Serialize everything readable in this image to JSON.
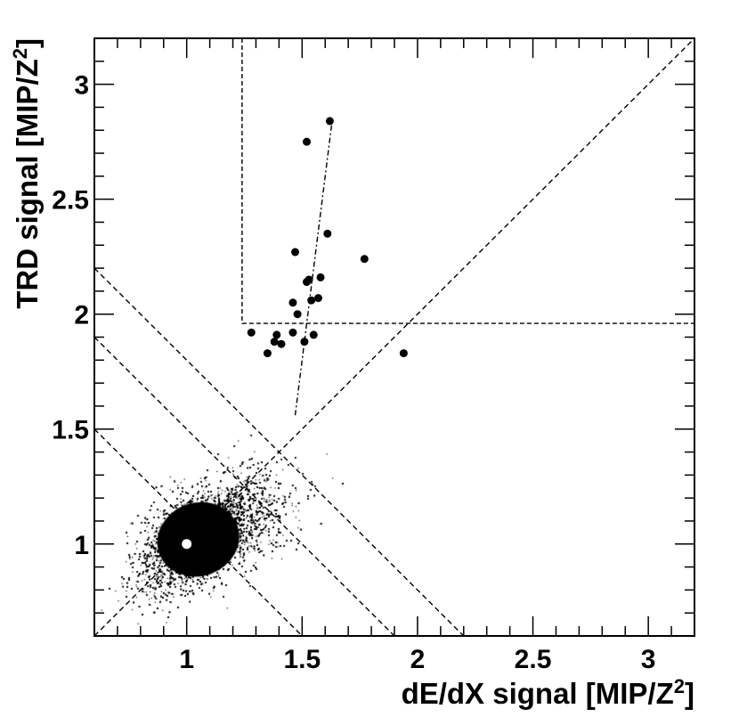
{
  "chart_data": {
    "type": "scatter",
    "title": "",
    "xlabel": {
      "main": "dE/dX signal [MIP/Z",
      "sup": "2",
      "close": "]"
    },
    "ylabel": {
      "main": "TRD signal [MIP/Z",
      "sup": "2",
      "close": "]"
    },
    "xlim": [
      0.6,
      3.2
    ],
    "ylim": [
      0.6,
      3.2
    ],
    "x_ticks": [
      1,
      1.5,
      2,
      2.5,
      3
    ],
    "y_ticks": [
      1,
      1.5,
      2,
      2.5,
      3
    ],
    "x_tick_labels": [
      "1",
      "1.5",
      "2",
      "2.5",
      "3"
    ],
    "y_tick_labels": [
      "1",
      "1.5",
      "2",
      "2.5",
      "3"
    ],
    "grid": false,
    "colors": {
      "points": "#000000",
      "center_marker": "#ffffff",
      "background": "#ffffff"
    },
    "center_marker": {
      "x": 1.0,
      "y": 1.0
    },
    "dense_distribution": {
      "description_free": true,
      "core_center": [
        1.05,
        1.02
      ],
      "core_radius": [
        0.18,
        0.16
      ],
      "x_range": [
        0.6,
        2.1
      ],
      "y_range": [
        0.6,
        1.7
      ]
    },
    "series": [
      {
        "marker": "circle",
        "points": [
          [
            1.28,
            1.92
          ],
          [
            1.35,
            1.83
          ],
          [
            1.39,
            1.91
          ],
          [
            1.38,
            1.88
          ],
          [
            1.41,
            1.87
          ],
          [
            1.46,
            1.92
          ],
          [
            1.46,
            2.05
          ],
          [
            1.47,
            2.27
          ],
          [
            1.48,
            2.0
          ],
          [
            1.51,
            1.88
          ],
          [
            1.52,
            2.14
          ],
          [
            1.52,
            2.75
          ],
          [
            1.53,
            2.15
          ],
          [
            1.54,
            2.06
          ],
          [
            1.55,
            1.91
          ],
          [
            1.57,
            2.07
          ],
          [
            1.58,
            2.16
          ],
          [
            1.61,
            2.35
          ],
          [
            1.62,
            2.84
          ],
          [
            1.77,
            2.24
          ],
          [
            1.94,
            1.83
          ]
        ]
      }
    ],
    "reference_lines": {
      "diagonal": [
        [
          0.6,
          0.6
        ],
        [
          3.2,
          3.2
        ]
      ],
      "anti_diagonals": [
        [
          [
            0.6,
            2.2
          ],
          [
            2.2,
            0.6
          ]
        ],
        [
          [
            0.6,
            1.9
          ],
          [
            1.9,
            0.6
          ]
        ],
        [
          [
            0.6,
            1.5
          ],
          [
            1.5,
            0.6
          ]
        ]
      ],
      "selection_box": [
        [
          1.24,
          3.2
        ],
        [
          1.24,
          1.96
        ],
        [
          3.2,
          1.96
        ]
      ],
      "fit_line": [
        [
          1.47,
          1.56
        ],
        [
          1.63,
          2.84
        ]
      ]
    }
  }
}
